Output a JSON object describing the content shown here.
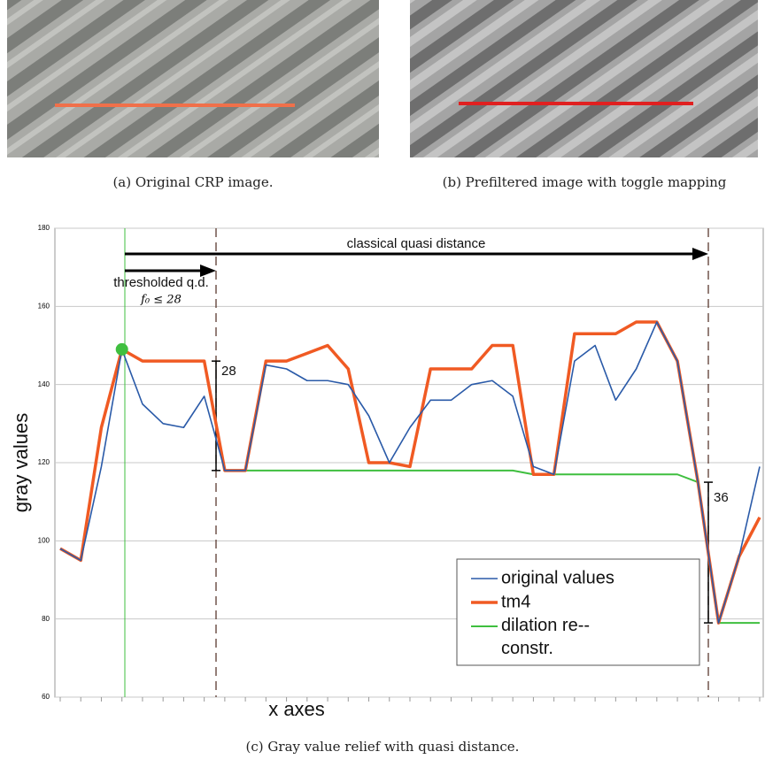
{
  "captions": {
    "a": "(a) Original CRP image.",
    "b": "(b) Prefiltered image with toggle mapping",
    "c": "(c) Gray value relief with quasi distance."
  },
  "chart_data": {
    "type": "line",
    "y_label": "gray values",
    "x_label": "x axes",
    "ylim": [
      60,
      180
    ],
    "yticks": [
      60,
      80,
      100,
      120,
      140,
      160,
      180
    ],
    "grid": true,
    "legend": "bottom-right",
    "annotations": [
      "classical quasi distance",
      "thresholded q.d.",
      "f₀ ≤ 28",
      "28",
      "36"
    ],
    "series": [
      {
        "name": "original values",
        "color": "#2a5aa8",
        "width": 1.6,
        "values": [
          98,
          95,
          119,
          149,
          135,
          130,
          129,
          137,
          118,
          118,
          145,
          144,
          141,
          141,
          140,
          132,
          120,
          129,
          136,
          136,
          140,
          141,
          137,
          119,
          117,
          146,
          150,
          136,
          144,
          156,
          146,
          115,
          79,
          96,
          119
        ]
      },
      {
        "name": "tm4",
        "color": "#f05a23",
        "width": 3.5,
        "values": [
          98,
          95,
          129,
          149,
          146,
          146,
          146,
          146,
          118,
          118,
          146,
          146,
          148,
          150,
          144,
          120,
          120,
          119,
          144,
          144,
          144,
          150,
          150,
          117,
          117,
          153,
          153,
          153,
          156,
          156,
          146,
          115,
          79,
          96,
          106
        ]
      },
      {
        "name": "dilation re-constr.",
        "color": "#3fbf3f",
        "width": 2,
        "values": [
          null,
          null,
          null,
          149,
          146,
          146,
          146,
          146,
          118,
          118,
          118,
          118,
          118,
          118,
          118,
          118,
          118,
          118,
          118,
          118,
          118,
          118,
          118,
          117,
          117,
          117,
          117,
          117,
          117,
          117,
          117,
          115,
          79,
          79,
          79
        ]
      }
    ]
  }
}
